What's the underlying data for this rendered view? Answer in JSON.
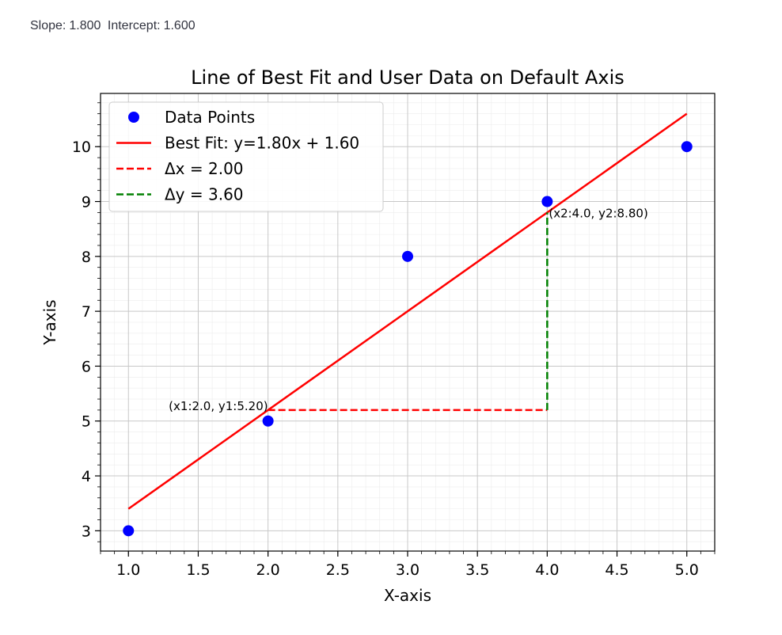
{
  "status": {
    "slope_label": "Slope:",
    "slope_value": "1.800",
    "intercept_label": "Intercept:",
    "intercept_value": "1.600"
  },
  "chart_data": {
    "type": "scatter",
    "title": "Line of Best Fit and User Data on Default Axis",
    "xlabel": "X-axis",
    "ylabel": "Y-axis",
    "xlim": [
      0.8,
      5.2
    ],
    "ylim": [
      2.63,
      10.97
    ],
    "xticks": [
      1.0,
      1.5,
      2.0,
      2.5,
      3.0,
      3.5,
      4.0,
      4.5,
      5.0
    ],
    "xtick_labels": [
      "1.0",
      "1.5",
      "2.0",
      "2.5",
      "3.0",
      "3.5",
      "4.0",
      "4.5",
      "5.0"
    ],
    "yticks": [
      3,
      4,
      5,
      6,
      7,
      8,
      9,
      10
    ],
    "ytick_labels": [
      "3",
      "4",
      "5",
      "6",
      "7",
      "8",
      "9",
      "10"
    ],
    "grid": true,
    "minor_grid": true,
    "legend_position": "top-left",
    "series": [
      {
        "name": "Data Points",
        "kind": "points",
        "color": "#0000ff",
        "x": [
          1,
          2,
          3,
          4,
          5
        ],
        "y": [
          3,
          5,
          8,
          9,
          10
        ]
      },
      {
        "name": "Best Fit: y=1.80x + 1.60",
        "kind": "line",
        "color": "#ff0000",
        "x": [
          1,
          5
        ],
        "y": [
          3.4,
          10.6
        ]
      },
      {
        "name": "Δx = 2.00",
        "kind": "dashed",
        "color": "#ff0000",
        "x": [
          2,
          4
        ],
        "y": [
          5.2,
          5.2
        ]
      },
      {
        "name": "Δy = 3.60",
        "kind": "dashed",
        "color": "#008000",
        "x": [
          4,
          4
        ],
        "y": [
          5.2,
          8.8
        ]
      }
    ],
    "annotations": [
      {
        "text": "(x1:2.0, y1:5.20)",
        "x": 2.0,
        "y": 5.2,
        "anchor": "end"
      },
      {
        "text": "(x2:4.0, y2:8.80)",
        "x": 4.0,
        "y": 8.8,
        "anchor": "start"
      }
    ]
  }
}
